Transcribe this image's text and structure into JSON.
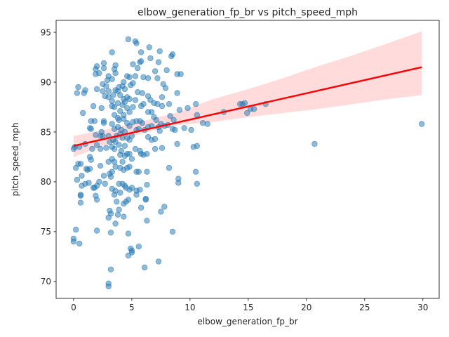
{
  "chart_data": {
    "type": "scatter",
    "title": "elbow_generation_fp_br vs pitch_speed_mph",
    "xlabel": "elbow_generation_fp_br",
    "ylabel": "pitch_speed_mph",
    "xlim": [
      -1.5,
      31.4
    ],
    "ylim": [
      68.3,
      96.2
    ],
    "x_ticks": [
      0,
      5,
      10,
      15,
      20,
      25,
      30
    ],
    "y_ticks": [
      70,
      75,
      80,
      85,
      90,
      95
    ],
    "grid": false,
    "point_color": "#1f77b4",
    "line_color": "#ff0000",
    "band_color": "#ff9999",
    "regression": {
      "x": [
        0.0,
        29.9
      ],
      "y": [
        83.6,
        91.5
      ]
    },
    "confidence_band": {
      "x": [
        0.0,
        3.0,
        6.0,
        9.0,
        12.0,
        15.0,
        18.0,
        21.0,
        24.0,
        27.0,
        29.9
      ],
      "lower": [
        82.5,
        83.8,
        84.9,
        85.7,
        86.0,
        86.5,
        86.9,
        87.3,
        87.8,
        88.3,
        88.7
      ],
      "upper": [
        84.6,
        85.3,
        86.1,
        87.0,
        88.3,
        89.3,
        90.4,
        91.6,
        92.7,
        93.9,
        95.1
      ]
    },
    "points": [
      [
        0.0,
        83.3
      ],
      [
        0.1,
        83.5
      ],
      [
        0.2,
        75.2
      ],
      [
        0.0,
        74.0
      ],
      [
        0.0,
        74.3
      ],
      [
        0.5,
        73.8
      ],
      [
        0.6,
        78.6
      ],
      [
        0.6,
        77.9
      ],
      [
        0.6,
        78.7
      ],
      [
        0.3,
        80.2
      ],
      [
        0.7,
        79.6
      ],
      [
        0.4,
        81.8
      ],
      [
        0.6,
        81.8
      ],
      [
        0.2,
        81.4
      ],
      [
        0.7,
        80.6
      ],
      [
        0.5,
        83.5
      ],
      [
        1.0,
        83.8
      ],
      [
        0.8,
        86.9
      ],
      [
        0.4,
        89.5
      ],
      [
        0.3,
        88.9
      ],
      [
        1.0,
        89.2
      ],
      [
        0.9,
        88.9
      ],
      [
        1.1,
        81.3
      ],
      [
        1.0,
        79.8
      ],
      [
        1.3,
        79.9
      ],
      [
        1.2,
        81.2
      ],
      [
        1.4,
        85.4
      ],
      [
        1.5,
        85.3
      ],
      [
        1.5,
        86.1
      ],
      [
        1.4,
        82.5
      ],
      [
        1.5,
        82.2
      ],
      [
        1.4,
        81.3
      ],
      [
        1.6,
        83.3
      ],
      [
        1.8,
        86.1
      ],
      [
        1.7,
        87.6
      ],
      [
        1.9,
        78.6
      ],
      [
        2.0,
        78.2
      ],
      [
        1.8,
        79.4
      ],
      [
        1.7,
        79.4
      ],
      [
        2.0,
        79.6
      ],
      [
        1.9,
        84.7
      ],
      [
        1.9,
        90.8
      ],
      [
        1.9,
        91.3
      ],
      [
        2.0,
        91.6
      ],
      [
        2.2,
        90.9
      ],
      [
        2.0,
        89.3
      ],
      [
        2.0,
        83.7
      ],
      [
        2.3,
        83.3
      ],
      [
        2.0,
        75.1
      ],
      [
        2.2,
        80.0
      ],
      [
        2.3,
        81.6
      ],
      [
        2.3,
        84.6
      ],
      [
        2.4,
        85.0
      ],
      [
        2.6,
        86.1
      ],
      [
        2.5,
        89.1
      ],
      [
        2.5,
        89.8
      ],
      [
        2.6,
        91.4
      ],
      [
        2.6,
        91.9
      ],
      [
        2.4,
        87.4
      ],
      [
        2.5,
        84.6
      ],
      [
        2.6,
        85.9
      ],
      [
        2.6,
        80.6
      ],
      [
        2.7,
        79.8
      ],
      [
        2.8,
        83.4
      ],
      [
        2.7,
        88.6
      ],
      [
        2.8,
        89.6
      ],
      [
        2.9,
        90.2
      ],
      [
        3.0,
        90.6
      ],
      [
        3.0,
        89.1
      ],
      [
        3.0,
        88.5
      ],
      [
        3.0,
        84.6
      ],
      [
        3.1,
        84.0
      ],
      [
        3.0,
        82.0
      ],
      [
        3.1,
        80.8
      ],
      [
        3.2,
        80.5
      ],
      [
        3.0,
        76.4
      ],
      [
        3.1,
        77.1
      ],
      [
        3.2,
        76.8
      ],
      [
        3.2,
        74.9
      ],
      [
        3.0,
        69.8
      ],
      [
        3.0,
        69.5
      ],
      [
        3.2,
        71.2
      ],
      [
        3.3,
        79.3
      ],
      [
        3.3,
        81.0
      ],
      [
        3.3,
        82.3
      ],
      [
        3.3,
        83.5
      ],
      [
        3.4,
        84.2
      ],
      [
        3.3,
        85.8
      ],
      [
        3.3,
        87.6
      ],
      [
        3.3,
        88.1
      ],
      [
        3.4,
        88.7
      ],
      [
        3.3,
        90.3
      ],
      [
        3.3,
        93.0
      ],
      [
        3.5,
        91.3
      ],
      [
        3.6,
        91.7
      ],
      [
        3.6,
        90.9
      ],
      [
        3.6,
        89.2
      ],
      [
        3.5,
        87.5
      ],
      [
        3.5,
        86.7
      ],
      [
        3.5,
        85.3
      ],
      [
        3.6,
        84.0
      ],
      [
        3.5,
        83.3
      ],
      [
        3.5,
        82.0
      ],
      [
        3.6,
        81.5
      ],
      [
        3.6,
        79.1
      ],
      [
        3.5,
        78.7
      ],
      [
        3.7,
        78.0
      ],
      [
        3.6,
        75.8
      ],
      [
        3.8,
        76.7
      ],
      [
        3.7,
        84.6
      ],
      [
        3.8,
        85.5
      ],
      [
        3.8,
        86.4
      ],
      [
        3.8,
        87.9
      ],
      [
        3.8,
        89.1
      ],
      [
        3.9,
        89.5
      ],
      [
        4.0,
        88.7
      ],
      [
        4.0,
        87.1
      ],
      [
        3.9,
        86.2
      ],
      [
        4.0,
        84.8
      ],
      [
        3.9,
        83.7
      ],
      [
        4.0,
        82.7
      ],
      [
        4.0,
        81.4
      ],
      [
        3.9,
        79.8
      ],
      [
        4.0,
        78.9
      ],
      [
        3.9,
        77.2
      ],
      [
        4.2,
        79.8
      ],
      [
        4.2,
        82.0
      ],
      [
        4.1,
        83.1
      ],
      [
        4.2,
        84.4
      ],
      [
        4.1,
        85.2
      ],
      [
        4.3,
        86.7
      ],
      [
        4.2,
        87.7
      ],
      [
        4.3,
        88.3
      ],
      [
        4.2,
        89.6
      ],
      [
        4.3,
        90.0
      ],
      [
        4.4,
        89.3
      ],
      [
        4.4,
        88.0
      ],
      [
        4.3,
        86.3
      ],
      [
        4.4,
        85.0
      ],
      [
        4.4,
        83.6
      ],
      [
        4.4,
        82.6
      ],
      [
        4.3,
        81.2
      ],
      [
        4.4,
        79.6
      ],
      [
        4.3,
        77.8
      ],
      [
        4.3,
        76.5
      ],
      [
        4.5,
        78.0
      ],
      [
        4.5,
        79.4
      ],
      [
        4.6,
        81.4
      ],
      [
        4.6,
        82.8
      ],
      [
        4.6,
        84.4
      ],
      [
        4.6,
        85.9
      ],
      [
        4.6,
        87.4
      ],
      [
        4.6,
        88.5
      ],
      [
        4.6,
        90.6
      ],
      [
        4.7,
        94.3
      ],
      [
        4.8,
        90.5
      ],
      [
        4.9,
        89.7
      ],
      [
        4.8,
        88.3
      ],
      [
        4.8,
        87.0
      ],
      [
        4.8,
        85.6
      ],
      [
        4.8,
        84.2
      ],
      [
        4.8,
        82.8
      ],
      [
        4.8,
        81.5
      ],
      [
        4.8,
        79.2
      ],
      [
        4.7,
        78.2
      ],
      [
        4.7,
        74.8
      ],
      [
        4.7,
        72.6
      ],
      [
        4.9,
        73.3
      ],
      [
        5.0,
        72.9
      ],
      [
        5.0,
        73.1
      ],
      [
        5.0,
        79.4
      ],
      [
        5.0,
        82.3
      ],
      [
        5.0,
        84.6
      ],
      [
        5.1,
        86.0
      ],
      [
        5.1,
        87.5
      ],
      [
        5.1,
        89.9
      ],
      [
        5.1,
        91.8
      ],
      [
        5.3,
        94.1
      ],
      [
        5.4,
        93.9
      ],
      [
        5.3,
        90.6
      ],
      [
        5.3,
        88.2
      ],
      [
        5.4,
        86.1
      ],
      [
        5.4,
        85.2
      ],
      [
        5.3,
        83.3
      ],
      [
        5.4,
        81.0
      ],
      [
        5.4,
        79.1
      ],
      [
        5.4,
        78.7
      ],
      [
        5.5,
        89.0
      ],
      [
        5.5,
        91.4
      ],
      [
        5.7,
        92.0
      ],
      [
        5.8,
        92.1
      ],
      [
        5.7,
        86.1
      ],
      [
        5.6,
        85.3
      ],
      [
        5.7,
        83.1
      ],
      [
        5.6,
        81.0
      ],
      [
        5.7,
        79.2
      ],
      [
        5.6,
        73.5
      ],
      [
        5.8,
        77.4
      ],
      [
        5.8,
        82.8
      ],
      [
        5.9,
        85.9
      ],
      [
        5.8,
        87.6
      ],
      [
        5.9,
        88.9
      ],
      [
        5.8,
        93.0
      ],
      [
        6.0,
        90.5
      ],
      [
        6.0,
        87.8
      ],
      [
        6.1,
        85.2
      ],
      [
        6.0,
        82.7
      ],
      [
        6.2,
        78.2
      ],
      [
        6.2,
        78.3
      ],
      [
        6.1,
        71.4
      ],
      [
        6.3,
        76.1
      ],
      [
        6.3,
        79.7
      ],
      [
        6.3,
        81.0
      ],
      [
        6.3,
        82.8
      ],
      [
        6.4,
        84.5
      ],
      [
        6.4,
        85.5
      ],
      [
        6.4,
        87.0
      ],
      [
        6.4,
        88.6
      ],
      [
        6.4,
        90.4
      ],
      [
        6.5,
        93.5
      ],
      [
        6.6,
        92.4
      ],
      [
        6.6,
        88.2
      ],
      [
        6.7,
        87.0
      ],
      [
        6.7,
        85.6
      ],
      [
        6.7,
        84.2
      ],
      [
        6.9,
        86.5
      ],
      [
        6.9,
        87.9
      ],
      [
        7.0,
        91.1
      ],
      [
        7.0,
        84.3
      ],
      [
        7.0,
        83.3
      ],
      [
        7.1,
        86.2
      ],
      [
        7.2,
        87.8
      ],
      [
        7.2,
        90.4
      ],
      [
        7.3,
        92.0
      ],
      [
        7.4,
        93.1
      ],
      [
        7.3,
        85.5
      ],
      [
        7.4,
        85.1
      ],
      [
        7.3,
        72.0
      ],
      [
        7.5,
        77.0
      ],
      [
        7.6,
        83.4
      ],
      [
        7.5,
        85.8
      ],
      [
        7.6,
        87.6
      ],
      [
        7.6,
        88.5
      ],
      [
        7.7,
        89.8
      ],
      [
        7.8,
        77.5
      ],
      [
        7.8,
        85.6
      ],
      [
        7.9,
        89.4
      ],
      [
        8.0,
        91.2
      ],
      [
        8.1,
        85.7
      ],
      [
        8.2,
        81.4
      ],
      [
        8.2,
        87.8
      ],
      [
        8.3,
        86.6
      ],
      [
        8.4,
        92.6
      ],
      [
        8.5,
        92.8
      ],
      [
        8.5,
        85.3
      ],
      [
        8.5,
        75.0
      ],
      [
        8.6,
        86.2
      ],
      [
        8.7,
        85.2
      ],
      [
        8.9,
        90.8
      ],
      [
        8.9,
        88.9
      ],
      [
        8.9,
        83.8
      ],
      [
        9.0,
        80.3
      ],
      [
        9.0,
        79.9
      ],
      [
        9.1,
        87.2
      ],
      [
        9.2,
        90.8
      ],
      [
        9.5,
        85.4
      ],
      [
        9.8,
        87.4
      ],
      [
        10.1,
        85.2
      ],
      [
        10.3,
        83.5
      ],
      [
        10.5,
        87.8
      ],
      [
        10.5,
        81.0
      ],
      [
        10.6,
        79.8
      ],
      [
        10.6,
        83.6
      ],
      [
        10.6,
        86.7
      ],
      [
        11.1,
        85.9
      ],
      [
        11.5,
        85.8
      ],
      [
        12.9,
        87.0
      ],
      [
        14.3,
        87.8
      ],
      [
        14.5,
        87.8
      ],
      [
        14.7,
        87.9
      ],
      [
        14.9,
        86.9
      ],
      [
        15.2,
        87.3
      ],
      [
        15.5,
        87.3
      ],
      [
        16.5,
        87.8
      ],
      [
        20.7,
        83.8
      ],
      [
        29.9,
        85.8
      ]
    ]
  }
}
